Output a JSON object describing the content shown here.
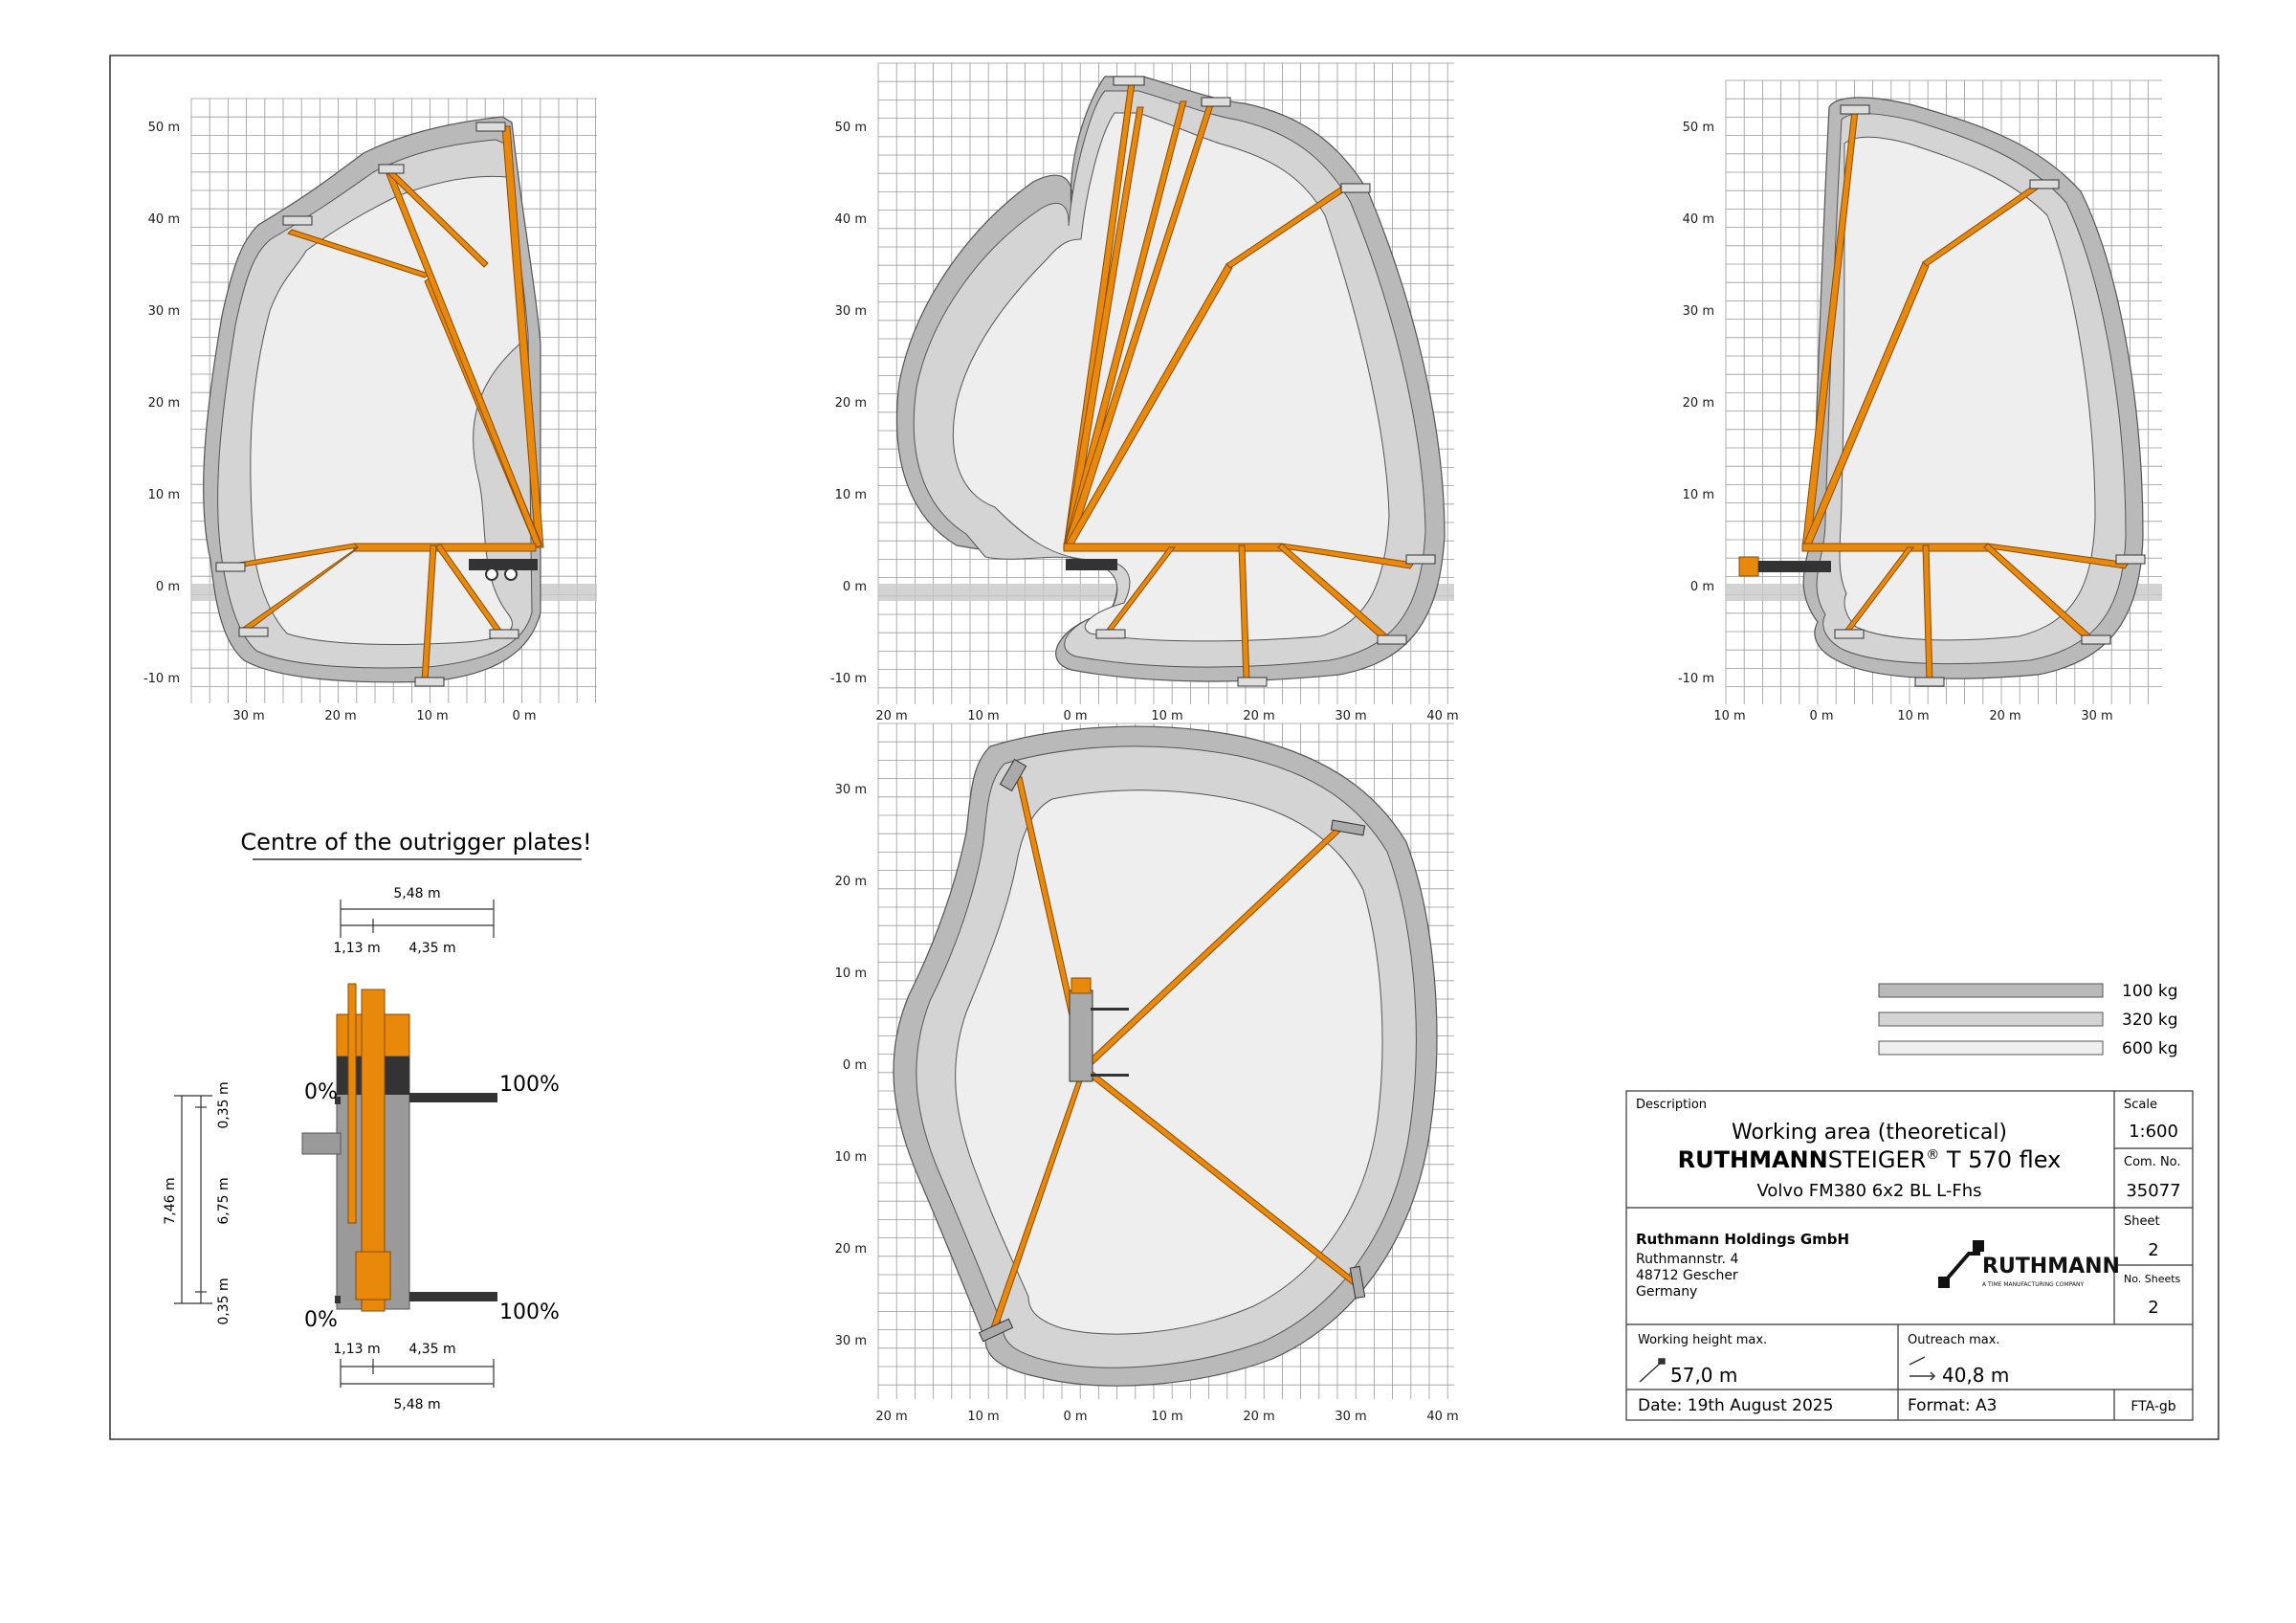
{
  "views": {
    "left": {
      "x_ticks": [
        "30 m",
        "20 m",
        "10 m",
        "0 m"
      ],
      "y_ticks": [
        "50 m",
        "40 m",
        "30 m",
        "20 m",
        "10 m",
        "0 m",
        "-10 m"
      ]
    },
    "center": {
      "x_ticks": [
        "20 m",
        "10 m",
        "0 m",
        "10 m",
        "20 m",
        "30 m",
        "40 m"
      ],
      "y_ticks": [
        "50 m",
        "40 m",
        "30 m",
        "20 m",
        "10 m",
        "0 m",
        "-10 m"
      ]
    },
    "right": {
      "x_ticks": [
        "10 m",
        "0 m",
        "10 m",
        "20 m",
        "30 m"
      ],
      "y_ticks": [
        "50 m",
        "40 m",
        "30 m",
        "20 m",
        "10 m",
        "0 m",
        "-10 m"
      ]
    },
    "plan": {
      "x_ticks": [
        "20 m",
        "10 m",
        "0 m",
        "10 m",
        "20 m",
        "30 m",
        "40 m"
      ],
      "y_ticks": [
        "30 m",
        "20 m",
        "10 m",
        "0 m",
        "10 m",
        "20 m",
        "30 m"
      ]
    }
  },
  "outrigger": {
    "title": "Centre of the outrigger plates!",
    "top_total": "5,48 m",
    "top_a": "1,13 m",
    "top_b": "4,35 m",
    "bottom_a": "1,13 m",
    "bottom_b": "4,35 m",
    "bottom_total": "5,48 m",
    "v_total": "7,46 m",
    "v_top": "0,35 m",
    "v_mid": "6,75 m",
    "v_bottom": "0,35 m",
    "pct_left_top": "0%",
    "pct_right_top": "100%",
    "pct_left_bottom": "0%",
    "pct_right_bottom": "100%"
  },
  "legend": [
    {
      "label": "100 kg",
      "color": "#b9b9b9"
    },
    {
      "label": "320 kg",
      "color": "#d4d4d4"
    },
    {
      "label": "600 kg",
      "color": "#eeeeee"
    }
  ],
  "title_block": {
    "description_label": "Description",
    "line1": "Working area (theoretical)",
    "brand_bold": "RUTHMANN",
    "brand_rest": "STEIGER",
    "reg": "®",
    "model": " T 570 flex",
    "line3": "Volvo FM380 6x2 BL L-Fhs",
    "scale_label": "Scale",
    "scale": "1:600",
    "com_label": "Com. No.",
    "com_no": "35077",
    "company": "Ruthmann Holdings GmbH",
    "street": "Ruthmannstr. 4",
    "city": "48712 Gescher",
    "country": "Germany",
    "logo_text": "RUTHMANN",
    "logo_sub": "A TIME MANUFACTURING COMPANY",
    "sheet_label": "Sheet",
    "sheet": "2",
    "nsheets_label": "No. Sheets",
    "nsheets": "2",
    "wh_label": "Working height max.",
    "wh_value": "57,0 m",
    "or_label": "Outreach max.",
    "or_value": "40,8 m",
    "date": "Date: 19th August 2025",
    "format": "Format: A3",
    "code": "FTA-gb"
  },
  "colors": {
    "boom": "#e8890c",
    "boom_edge": "#8a4b00",
    "env_outer": "#b9b9b9",
    "env_mid": "#d4d4d4",
    "env_inner": "#eeeeee",
    "grid": "#9a9a9a",
    "ground": "#c8c8c8"
  }
}
